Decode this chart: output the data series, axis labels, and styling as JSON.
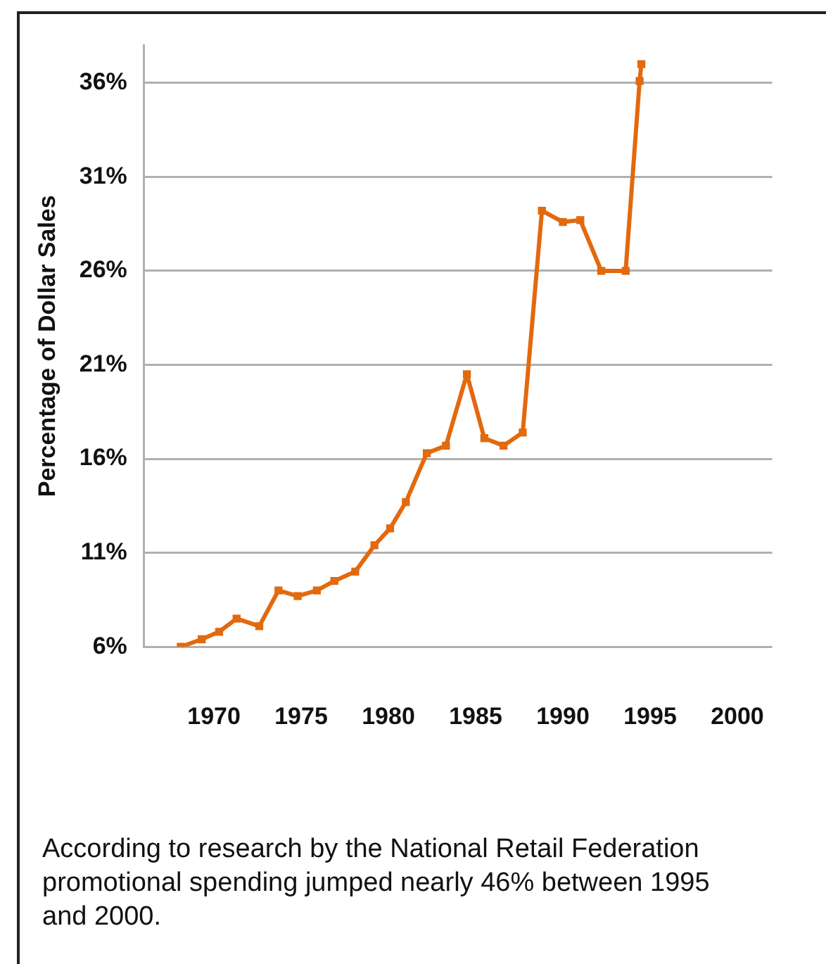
{
  "chart_data": {
    "type": "line",
    "ylabel": "Percentage of Dollar Sales",
    "x": [
      1968.1,
      1969.3,
      1970.3,
      1971.3,
      1972.6,
      1973.7,
      1974.8,
      1975.9,
      1976.9,
      1978.1,
      1979.2,
      1980.1,
      1981.0,
      1982.2,
      1983.3,
      1984.5,
      1985.5,
      1986.6,
      1987.7,
      1988.8,
      1990.0,
      1991.0,
      1992.2,
      1993.6,
      1994.4,
      1994.5
    ],
    "series": [
      {
        "color": "#e3690e",
        "values": [
          6.0,
          6.4,
          6.8,
          7.5,
          7.1,
          9.0,
          8.7,
          9.0,
          9.5,
          10.0,
          11.4,
          12.3,
          13.7,
          16.3,
          16.7,
          20.5,
          17.1,
          16.7,
          17.4,
          29.2,
          28.6,
          28.7,
          26.0,
          26.0,
          36.1,
          37.0
        ]
      }
    ],
    "xlim": [
      1966,
      2002
    ],
    "xticks": [
      1970,
      1975,
      1980,
      1985,
      1990,
      1995,
      2000
    ],
    "ylim": [
      6,
      38
    ],
    "yticks": [
      {
        "value": 6,
        "label": "6%"
      },
      {
        "value": 11,
        "label": "11%"
      },
      {
        "value": 16,
        "label": "16%"
      },
      {
        "value": 21,
        "label": "21%"
      },
      {
        "value": 26,
        "label": "26%"
      },
      {
        "value": 31,
        "label": "31%"
      },
      {
        "value": 36,
        "label": "36%"
      }
    ],
    "grid": "y",
    "legend": false,
    "marker": "square",
    "line_style": "solid",
    "annotations": [
      "According to research by the National Retail Federation promotional spending jumped nearly 46% between 1995 and 2000."
    ]
  }
}
